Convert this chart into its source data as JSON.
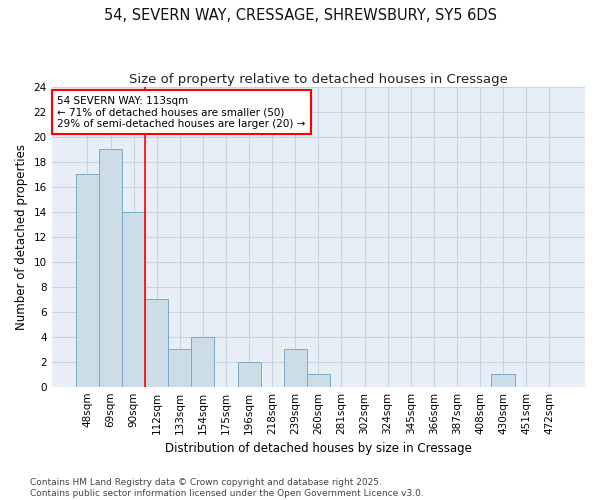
{
  "title1": "54, SEVERN WAY, CRESSAGE, SHREWSBURY, SY5 6DS",
  "title2": "Size of property relative to detached houses in Cressage",
  "xlabel": "Distribution of detached houses by size in Cressage",
  "ylabel": "Number of detached properties",
  "categories": [
    "48sqm",
    "69sqm",
    "90sqm",
    "112sqm",
    "133sqm",
    "154sqm",
    "175sqm",
    "196sqm",
    "218sqm",
    "239sqm",
    "260sqm",
    "281sqm",
    "302sqm",
    "324sqm",
    "345sqm",
    "366sqm",
    "387sqm",
    "408sqm",
    "430sqm",
    "451sqm",
    "472sqm"
  ],
  "values": [
    17,
    19,
    14,
    7,
    3,
    4,
    0,
    2,
    0,
    3,
    1,
    0,
    0,
    0,
    0,
    0,
    0,
    0,
    1,
    0,
    0
  ],
  "bar_color": "#ccdde8",
  "bar_edge_color": "#7aaac8",
  "red_line_index": 3,
  "annotation_text": "54 SEVERN WAY: 113sqm\n← 71% of detached houses are smaller (50)\n29% of semi-detached houses are larger (20) →",
  "annotation_box_color": "white",
  "annotation_box_edge": "red",
  "ylim": [
    0,
    24
  ],
  "yticks": [
    0,
    2,
    4,
    6,
    8,
    10,
    12,
    14,
    16,
    18,
    20,
    22,
    24
  ],
  "footer": "Contains HM Land Registry data © Crown copyright and database right 2025.\nContains public sector information licensed under the Open Government Licence v3.0.",
  "plot_bg_color": "#e8eef5",
  "fig_bg_color": "#ffffff",
  "grid_color": "#c8d4e0",
  "title_fontsize": 10.5,
  "subtitle_fontsize": 9.5,
  "tick_fontsize": 7.5,
  "label_fontsize": 8.5,
  "footer_fontsize": 6.5,
  "annot_fontsize": 7.5
}
